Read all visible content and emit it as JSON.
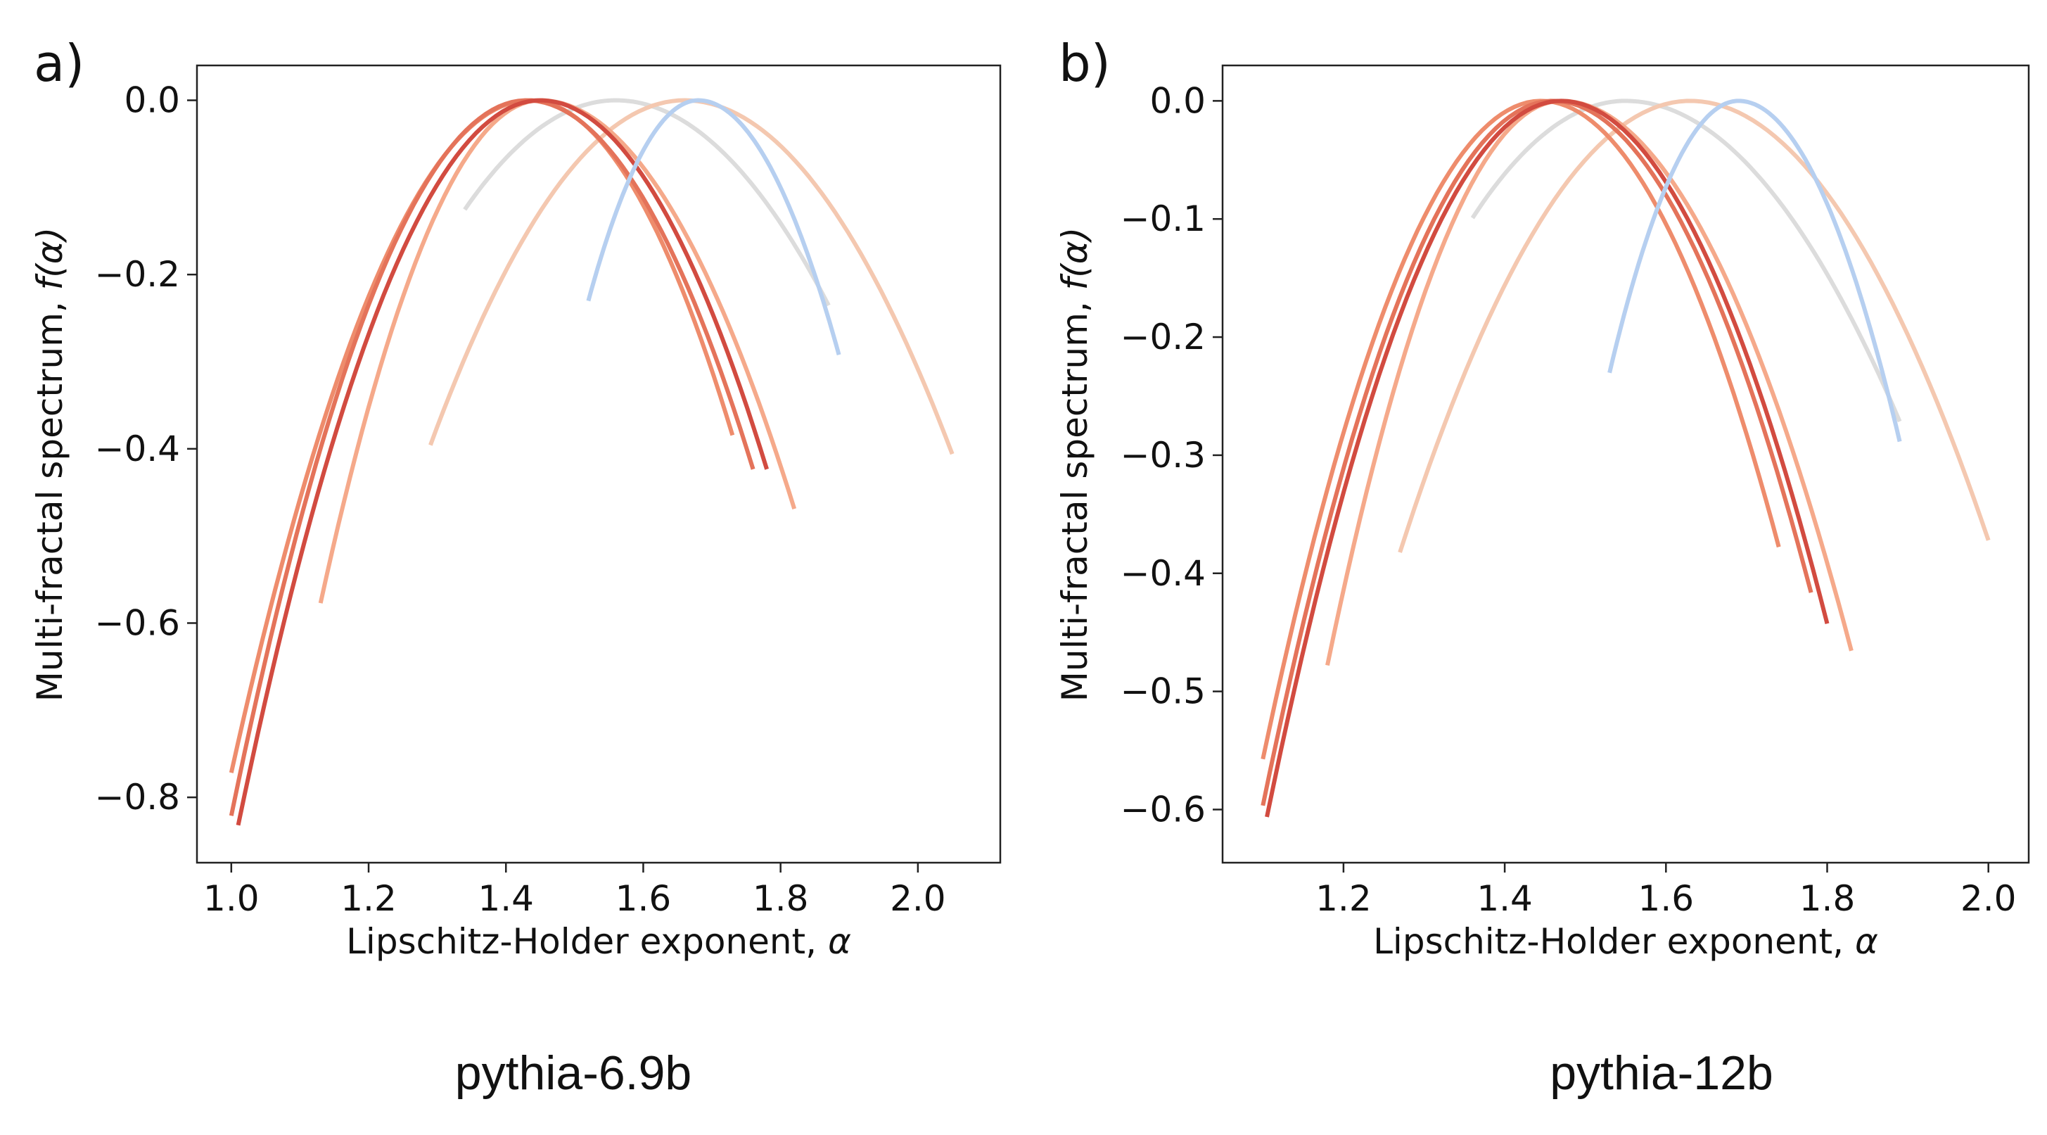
{
  "chart_data": [
    {
      "panel_label": "a)",
      "caption": "pythia-6.9b",
      "type": "line",
      "xlabel": "Lipschitz-Holder exponent, ",
      "xlabel_symbol": "α",
      "ylabel": "Multi-fractal spectrum, ",
      "ylabel_symbol": "f(α)",
      "xlim": [
        0.95,
        2.12
      ],
      "ylim": [
        -0.875,
        0.04
      ],
      "xticks": [
        1.0,
        1.2,
        1.4,
        1.6,
        1.8,
        2.0
      ],
      "xtick_labels": [
        "1.0",
        "1.2",
        "1.4",
        "1.6",
        "1.8",
        "2.0"
      ],
      "yticks": [
        0.0,
        -0.2,
        -0.4,
        -0.6,
        -0.8
      ],
      "ytick_labels": [
        "0.0",
        "−0.2",
        "−0.4",
        "−0.6",
        "−0.8"
      ],
      "grid": false,
      "series": [
        {
          "color": "#dcdcdc",
          "peak_x": 1.56,
          "x": [
            1.34,
            1.4,
            1.46,
            1.52,
            1.56,
            1.62,
            1.68,
            1.74,
            1.8,
            1.87
          ],
          "y": [
            -0.13,
            -0.06,
            -0.02,
            -0.003,
            0.0,
            -0.007,
            -0.03,
            -0.07,
            -0.14,
            -0.24
          ]
        },
        {
          "color": "#f4c8b0",
          "peak_x": 1.66,
          "x": [
            1.29,
            1.35,
            1.45,
            1.55,
            1.66,
            1.75,
            1.85,
            1.95,
            2.05
          ],
          "y": [
            -0.4,
            -0.27,
            -0.13,
            -0.04,
            0.0,
            -0.02,
            -0.09,
            -0.22,
            -0.41
          ]
        },
        {
          "color": "#f5a98a",
          "peak_x": 1.45,
          "x": [
            1.13,
            1.2,
            1.28,
            1.36,
            1.45,
            1.55,
            1.65,
            1.74,
            1.82
          ],
          "y": [
            -0.57,
            -0.36,
            -0.17,
            -0.05,
            0.0,
            -0.03,
            -0.13,
            -0.29,
            -0.47
          ]
        },
        {
          "color": "#ee8c6c",
          "peak_x": 1.435,
          "x": [
            1.0,
            1.08,
            1.18,
            1.3,
            1.435,
            1.52,
            1.6,
            1.67,
            1.73
          ],
          "y": [
            -0.77,
            -0.52,
            -0.26,
            -0.07,
            0.0,
            -0.02,
            -0.09,
            -0.22,
            -0.41
          ]
        },
        {
          "color": "#e4735a",
          "peak_x": 1.43,
          "x": [
            1.0,
            1.08,
            1.18,
            1.3,
            1.43,
            1.53,
            1.62,
            1.7,
            1.76
          ],
          "y": [
            -0.82,
            -0.55,
            -0.27,
            -0.07,
            0.0,
            -0.03,
            -0.12,
            -0.27,
            -0.44
          ]
        },
        {
          "color": "#d24b40",
          "peak_x": 1.45,
          "x": [
            1.01,
            1.09,
            1.19,
            1.31,
            1.45,
            1.55,
            1.64,
            1.72,
            1.78
          ],
          "y": [
            -0.835,
            -0.56,
            -0.28,
            -0.07,
            0.0,
            -0.03,
            -0.12,
            -0.27,
            -0.44
          ]
        },
        {
          "color": "#b6cff0",
          "peak_x": 1.68,
          "x": [
            1.52,
            1.57,
            1.62,
            1.68,
            1.74,
            1.8,
            1.86,
            1.885
          ],
          "y": [
            -0.23,
            -0.11,
            -0.03,
            0.0,
            -0.02,
            -0.09,
            -0.22,
            -0.3
          ]
        }
      ]
    },
    {
      "panel_label": "b)",
      "caption": "pythia-12b",
      "type": "line",
      "xlabel": "Lipschitz-Holder exponent, ",
      "xlabel_symbol": "α",
      "ylabel": "Multi-fractal spectrum, ",
      "ylabel_symbol": "f(α)",
      "xlim": [
        1.05,
        2.05
      ],
      "ylim": [
        -0.645,
        0.03
      ],
      "xticks": [
        1.2,
        1.4,
        1.6,
        1.8,
        2.0
      ],
      "xtick_labels": [
        "1.2",
        "1.4",
        "1.6",
        "1.8",
        "2.0"
      ],
      "yticks": [
        0.0,
        -0.1,
        -0.2,
        -0.3,
        -0.4,
        -0.5,
        -0.6
      ],
      "ytick_labels": [
        "0.0",
        "−0.1",
        "−0.2",
        "−0.3",
        "−0.4",
        "−0.5",
        "−0.6"
      ],
      "grid": false,
      "series": [
        {
          "color": "#dcdcdc",
          "peak_x": 1.55,
          "x": [
            1.36,
            1.42,
            1.48,
            1.55,
            1.62,
            1.69,
            1.76,
            1.83,
            1.89
          ],
          "y": [
            -0.1,
            -0.045,
            -0.012,
            0.0,
            -0.008,
            -0.035,
            -0.085,
            -0.17,
            -0.29
          ]
        },
        {
          "color": "#f4c8b0",
          "peak_x": 1.63,
          "x": [
            1.27,
            1.33,
            1.42,
            1.52,
            1.63,
            1.73,
            1.83,
            1.92,
            2.0
          ],
          "y": [
            -0.39,
            -0.26,
            -0.12,
            -0.03,
            0.0,
            -0.025,
            -0.1,
            -0.22,
            -0.38
          ]
        },
        {
          "color": "#f5a98a",
          "peak_x": 1.47,
          "x": [
            1.18,
            1.24,
            1.31,
            1.39,
            1.47,
            1.56,
            1.65,
            1.74,
            1.83
          ],
          "y": [
            -0.48,
            -0.3,
            -0.14,
            -0.035,
            0.0,
            -0.03,
            -0.12,
            -0.27,
            -0.46
          ]
        },
        {
          "color": "#ee8c6c",
          "peak_x": 1.445,
          "x": [
            1.1,
            1.16,
            1.24,
            1.34,
            1.445,
            1.53,
            1.61,
            1.68,
            1.74
          ],
          "y": [
            -0.56,
            -0.38,
            -0.19,
            -0.05,
            0.0,
            -0.025,
            -0.1,
            -0.23,
            -0.39
          ]
        },
        {
          "color": "#e4735a",
          "peak_x": 1.46,
          "x": [
            1.1,
            1.16,
            1.24,
            1.34,
            1.46,
            1.55,
            1.64,
            1.72,
            1.78
          ],
          "y": [
            -0.61,
            -0.41,
            -0.2,
            -0.05,
            0.0,
            -0.03,
            -0.12,
            -0.26,
            -0.43
          ]
        },
        {
          "color": "#d24b40",
          "peak_x": 1.47,
          "x": [
            1.105,
            1.17,
            1.25,
            1.35,
            1.47,
            1.57,
            1.66,
            1.74,
            1.8
          ],
          "y": [
            -0.615,
            -0.41,
            -0.2,
            -0.05,
            0.0,
            -0.03,
            -0.13,
            -0.28,
            -0.46
          ]
        },
        {
          "color": "#b6cff0",
          "peak_x": 1.69,
          "x": [
            1.53,
            1.58,
            1.63,
            1.69,
            1.75,
            1.81,
            1.86,
            1.89
          ],
          "y": [
            -0.23,
            -0.11,
            -0.03,
            0.0,
            -0.02,
            -0.09,
            -0.2,
            -0.3
          ]
        }
      ]
    }
  ]
}
